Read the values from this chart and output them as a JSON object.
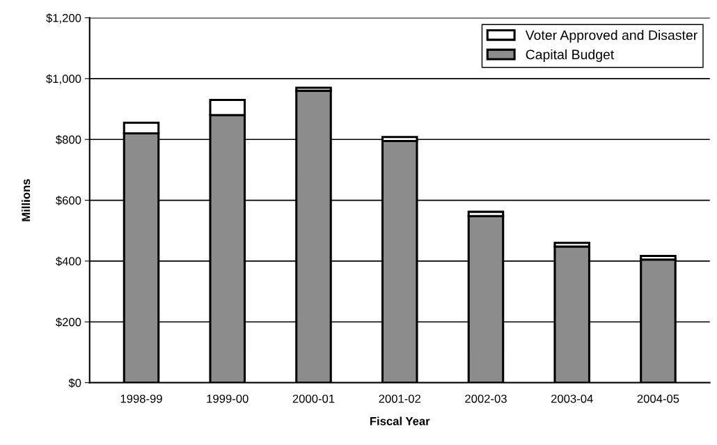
{
  "chart_data": {
    "type": "bar",
    "stacked": true,
    "xlabel": "Fiscal Year",
    "ylabel": "Millions",
    "categories": [
      "1998-99",
      "1999-00",
      "2000-01",
      "2001-02",
      "2002-03",
      "2003-04",
      "2004-05"
    ],
    "series": [
      {
        "name": "Capital Budget",
        "color": "#8c8c8c",
        "values": [
          820,
          880,
          960,
          795,
          548,
          448,
          405
        ]
      },
      {
        "name": "Voter Approved and Disaster",
        "color": "#ffffff",
        "values": [
          35,
          50,
          10,
          13,
          14,
          12,
          12
        ]
      }
    ],
    "ylim": [
      0,
      1200
    ],
    "yticks": [
      {
        "value": 0,
        "label": "$0"
      },
      {
        "value": 200,
        "label": "$200"
      },
      {
        "value": 400,
        "label": "$400"
      },
      {
        "value": 600,
        "label": "$600"
      },
      {
        "value": 800,
        "label": "$800"
      },
      {
        "value": 1000,
        "label": "$1,000"
      },
      {
        "value": 1200,
        "label": "$1,200"
      }
    ],
    "grid": "y",
    "legend": "top right"
  }
}
